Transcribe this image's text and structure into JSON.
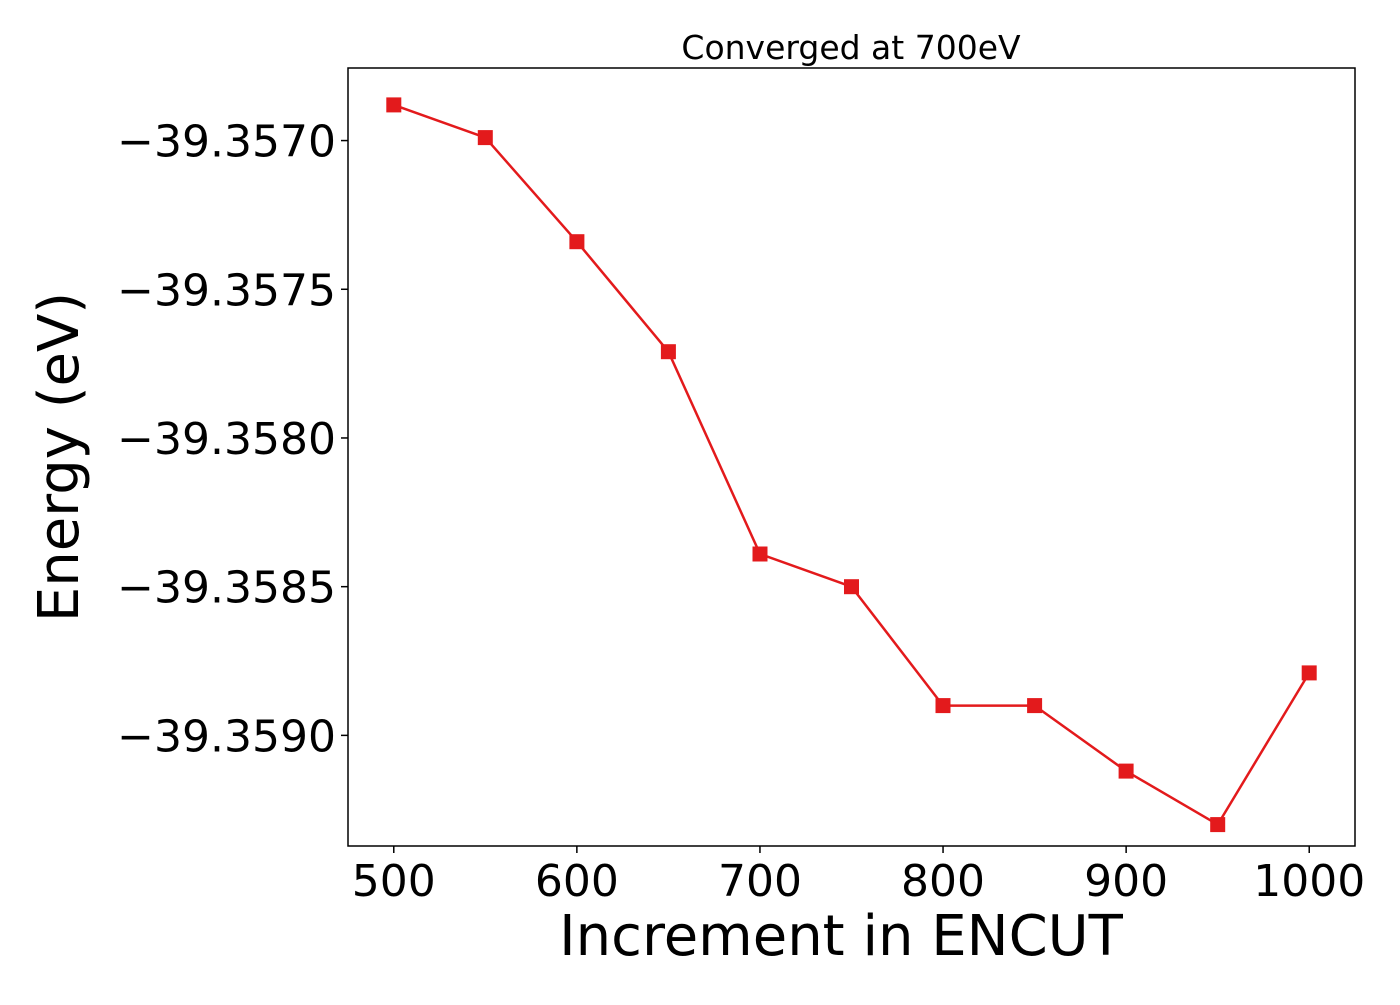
{
  "chart_data": {
    "type": "line",
    "title": "Converged at 700eV",
    "xlabel": "Increment in ENCUT",
    "ylabel": "Energy (eV)",
    "x": [
      500,
      550,
      600,
      650,
      700,
      750,
      800,
      850,
      900,
      950,
      1000
    ],
    "series": [
      {
        "values": [
          -39.35688,
          -39.35699,
          -39.35734,
          -39.35771,
          -39.35839,
          -39.3585,
          -39.3589,
          -39.3589,
          -39.35912,
          -39.3593,
          -39.35879
        ],
        "color": "#e31a1c",
        "marker": "square"
      }
    ],
    "xticks": [
      500,
      600,
      700,
      800,
      900,
      1000
    ],
    "xtick_labels": [
      "500",
      "600",
      "700",
      "800",
      "900",
      "1000"
    ],
    "yticks": [
      -39.357,
      -39.3575,
      -39.358,
      -39.3585,
      -39.359
    ],
    "ytick_labels": [
      "−39.3570",
      "−39.3575",
      "−39.3580",
      "−39.3585",
      "−39.3590"
    ],
    "xlim": [
      475,
      1025
    ],
    "ylim": [
      -39.359372,
      -39.356756
    ],
    "grid": false,
    "legend": "none"
  }
}
